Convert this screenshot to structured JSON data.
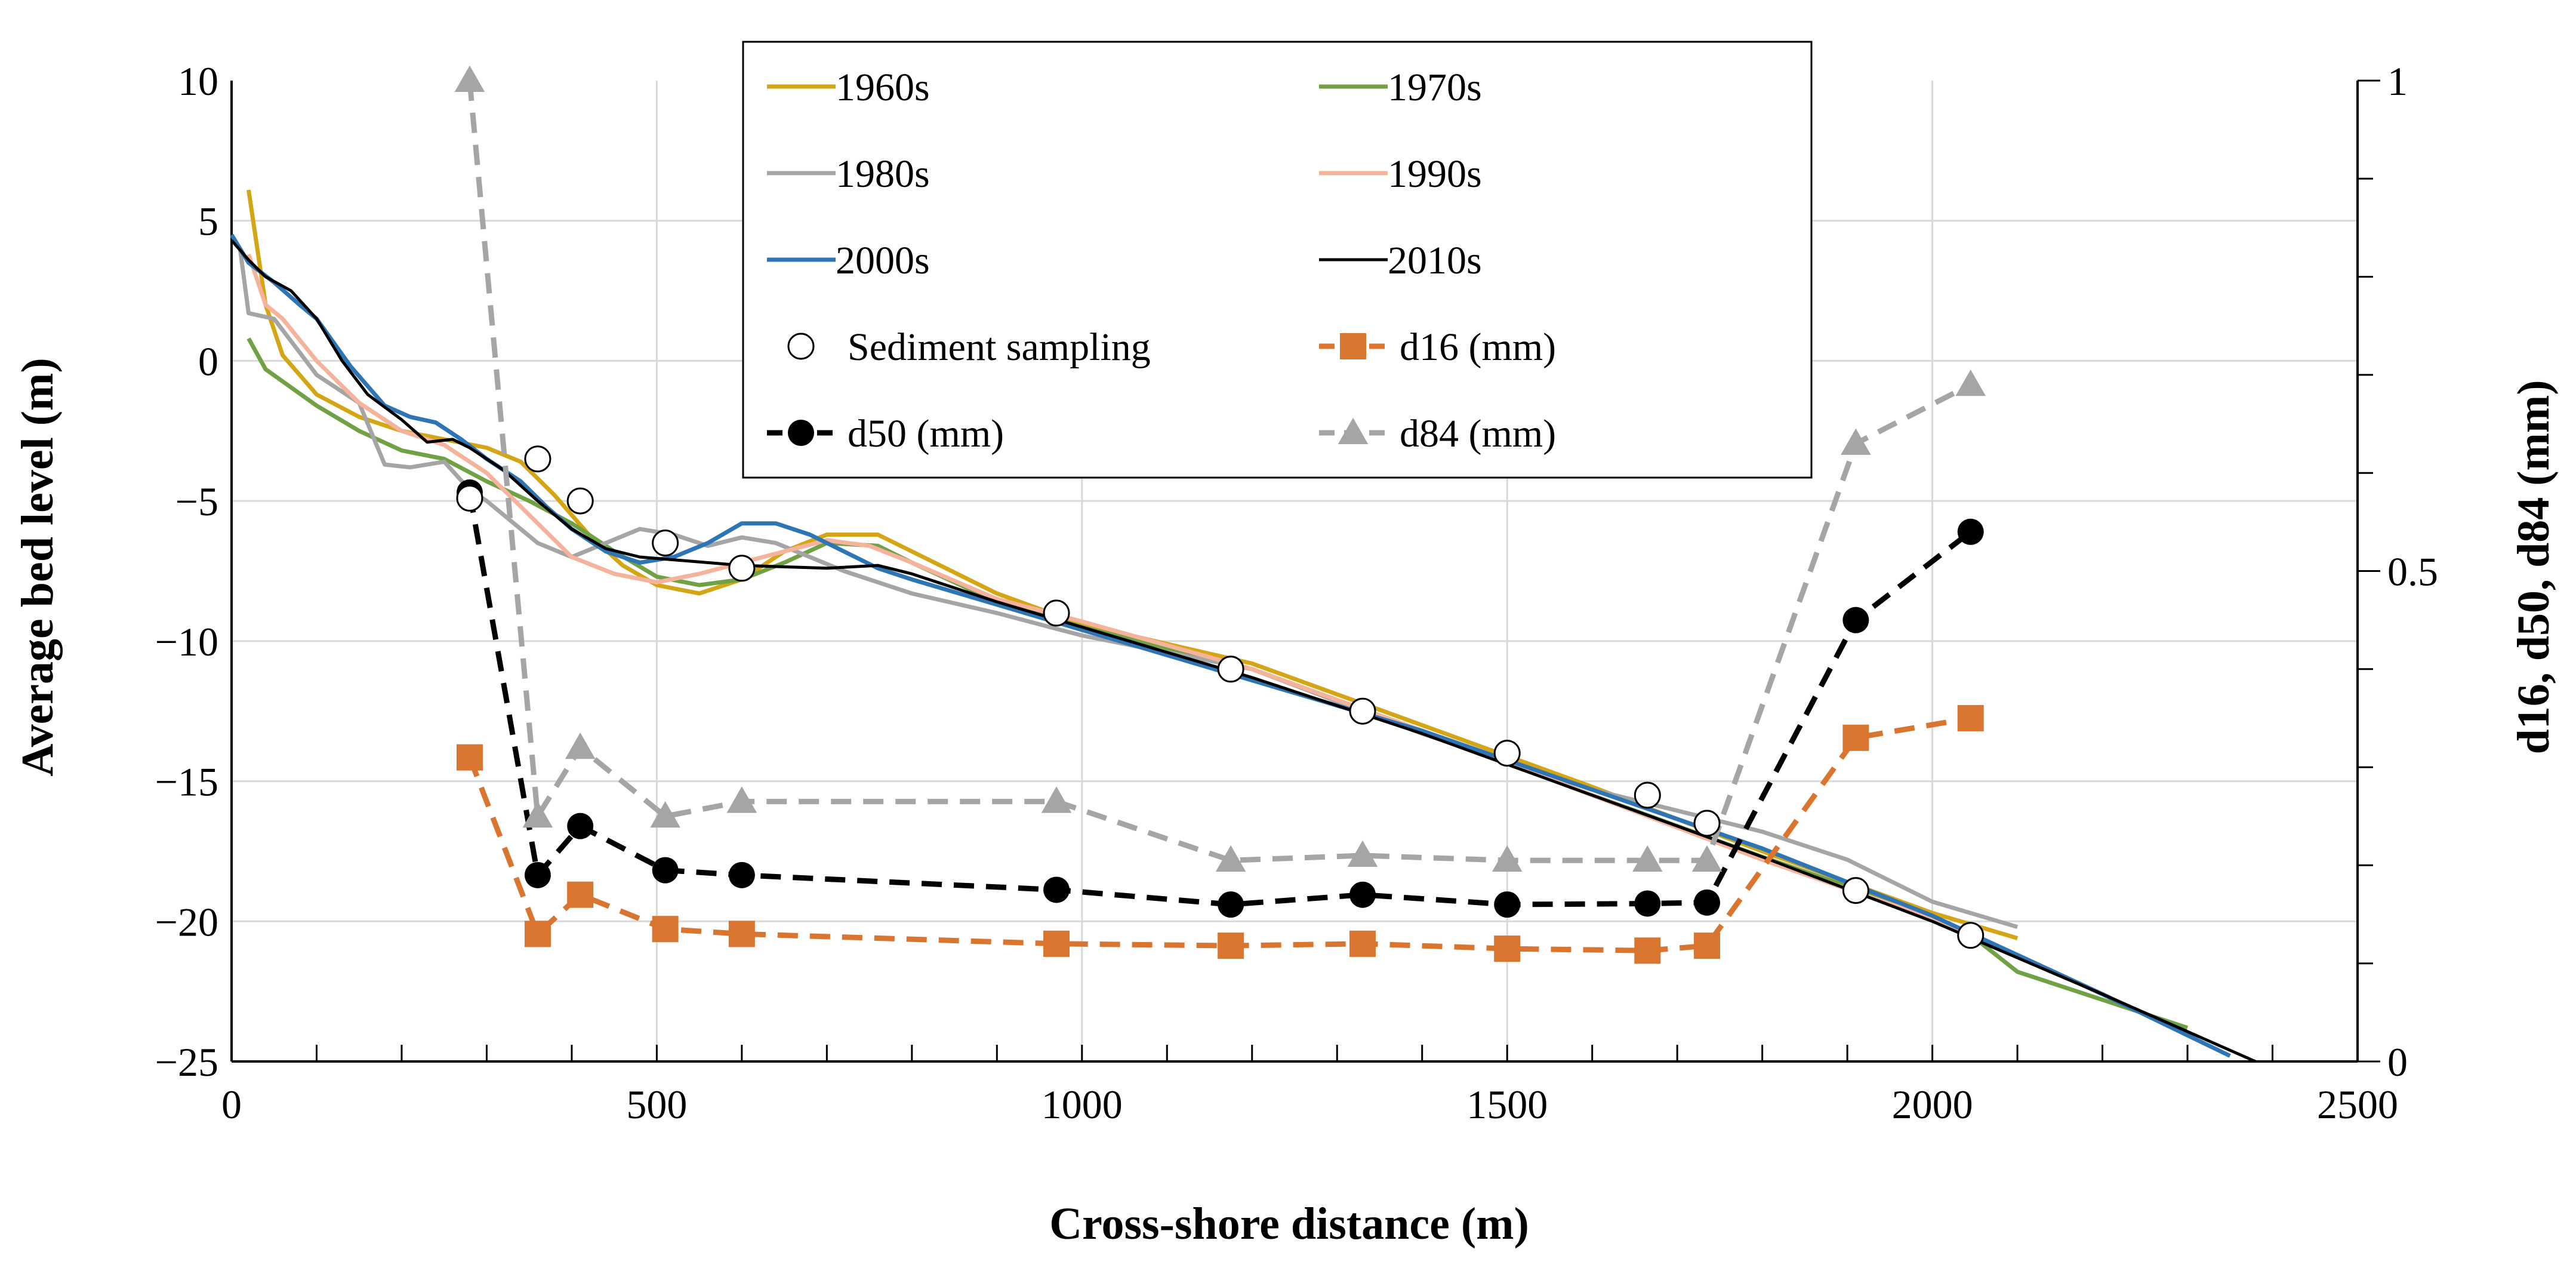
{
  "chart_data": {
    "type": "line",
    "xlabel": "Cross-shore distance (m)",
    "ylabel": "Average bed level (m)",
    "y2label": "d16, d50, d84 (mm)",
    "xlim": [
      0,
      2500
    ],
    "ylim": [
      -25,
      10
    ],
    "y2lim": [
      0,
      1
    ],
    "grid": true,
    "legend_position": "top-center",
    "x_ticks": [
      0,
      500,
      1000,
      1500,
      2000,
      2500
    ],
    "y_ticks": [
      10,
      5,
      0,
      -5,
      -10,
      -15,
      -20,
      -25
    ],
    "y2_ticks": [
      0,
      0.5,
      1
    ],
    "x_tick_labels": [
      "0",
      "500",
      "1000",
      "1500",
      "2000",
      "2500"
    ],
    "y_tick_labels": [
      "10",
      "5",
      "0",
      "−5",
      "−10",
      "−15",
      "−20",
      "−25"
    ],
    "y2_tick_labels": [
      "0",
      "0.5",
      "1"
    ],
    "profiles": [
      {
        "name": "1960s",
        "color": "#D4A514",
        "x": [
          20,
          40,
          60,
          100,
          150,
          200,
          250,
          300,
          340,
          380,
          420,
          460,
          500,
          550,
          600,
          650,
          700,
          760,
          800,
          900,
          1000,
          1200,
          1400,
          1600,
          1800,
          2000,
          2100
        ],
        "y": [
          6.1,
          2.0,
          0.2,
          -1.2,
          -2.0,
          -2.5,
          -2.8,
          -3.1,
          -3.6,
          -4.8,
          -6.2,
          -7.3,
          -8.0,
          -8.3,
          -7.8,
          -6.8,
          -6.2,
          -6.2,
          -6.8,
          -8.3,
          -9.4,
          -10.8,
          -13.0,
          -15.2,
          -17.5,
          -19.7,
          -20.6
        ]
      },
      {
        "name": "1970s",
        "color": "#70A145",
        "x": [
          20,
          40,
          100,
          150,
          200,
          250,
          300,
          350,
          400,
          450,
          500,
          550,
          600,
          650,
          700,
          760,
          800,
          900,
          1000,
          1200,
          1400,
          1600,
          1800,
          2000,
          2050,
          2100,
          2200,
          2300
        ],
        "y": [
          0.8,
          -0.3,
          -1.6,
          -2.5,
          -3.2,
          -3.5,
          -4.3,
          -5.0,
          -5.8,
          -6.8,
          -7.7,
          -8.0,
          -7.8,
          -7.2,
          -6.5,
          -6.6,
          -7.2,
          -8.6,
          -9.5,
          -11.0,
          -13.2,
          -15.5,
          -17.7,
          -19.8,
          -20.6,
          -21.8,
          -22.8,
          -23.8
        ]
      },
      {
        "name": "1980s",
        "color": "#A5A5A5",
        "x": [
          10,
          20,
          50,
          80,
          100,
          150,
          180,
          210,
          250,
          280,
          300,
          360,
          400,
          440,
          480,
          520,
          560,
          600,
          640,
          680,
          720,
          800,
          900,
          1000,
          1200,
          1400,
          1600,
          1800,
          1900,
          2000,
          2100
        ],
        "y": [
          4.0,
          1.7,
          1.5,
          0.3,
          -0.5,
          -1.5,
          -3.7,
          -3.8,
          -3.6,
          -4.6,
          -5.0,
          -6.5,
          -7.0,
          -6.5,
          -6.0,
          -6.2,
          -6.6,
          -6.3,
          -6.5,
          -7.0,
          -7.5,
          -8.3,
          -9.0,
          -9.8,
          -11.0,
          -13.3,
          -15.3,
          -16.8,
          -17.8,
          -19.3,
          -20.2
        ]
      },
      {
        "name": "1990s",
        "color": "#F4B39A",
        "x": [
          20,
          40,
          60,
          100,
          150,
          200,
          250,
          300,
          350,
          400,
          450,
          500,
          550,
          600,
          650,
          700,
          750,
          800,
          900,
          1000,
          1200,
          1400,
          1600,
          1800,
          2000,
          2100,
          2200,
          2300
        ],
        "y": [
          3.8,
          2.0,
          1.5,
          0.0,
          -1.5,
          -2.5,
          -3.0,
          -4.0,
          -5.5,
          -7.0,
          -7.6,
          -7.9,
          -7.6,
          -7.2,
          -6.8,
          -6.4,
          -6.6,
          -7.2,
          -8.5,
          -9.3,
          -11.0,
          -13.2,
          -15.5,
          -17.8,
          -19.9,
          -21.2,
          -22.6,
          -24.0
        ]
      },
      {
        "name": "2000s",
        "color": "#2E75B6",
        "x": [
          0,
          20,
          50,
          80,
          100,
          140,
          180,
          210,
          240,
          270,
          300,
          340,
          370,
          400,
          440,
          480,
          520,
          560,
          600,
          640,
          680,
          720,
          760,
          800,
          900,
          1000,
          1200,
          1400,
          1600,
          1800,
          2000,
          2200,
          2350
        ],
        "y": [
          4.5,
          3.5,
          2.8,
          2.0,
          1.5,
          -0.2,
          -1.6,
          -2.0,
          -2.2,
          -2.8,
          -3.5,
          -4.3,
          -5.2,
          -6.0,
          -6.8,
          -7.2,
          -7.0,
          -6.5,
          -5.8,
          -5.8,
          -6.2,
          -6.8,
          -7.4,
          -7.8,
          -8.7,
          -9.6,
          -11.4,
          -13.2,
          -15.3,
          -17.4,
          -19.8,
          -22.6,
          -24.8
        ]
      },
      {
        "name": "2010s",
        "color": "#000000",
        "x": [
          0,
          20,
          40,
          70,
          100,
          130,
          160,
          200,
          230,
          260,
          280,
          320,
          360,
          400,
          440,
          480,
          520,
          600,
          700,
          760,
          800,
          900,
          1000,
          1200,
          1400,
          1600,
          1800,
          2000,
          2200,
          2380
        ],
        "y": [
          4.3,
          3.6,
          3.0,
          2.5,
          1.5,
          0.0,
          -1.2,
          -2.1,
          -2.9,
          -2.8,
          -3.1,
          -3.9,
          -5.0,
          -6.0,
          -6.7,
          -7.0,
          -7.1,
          -7.3,
          -7.4,
          -7.3,
          -7.6,
          -8.6,
          -9.5,
          -11.3,
          -13.3,
          -15.5,
          -17.7,
          -20.0,
          -22.6,
          -25.0
        ]
      }
    ],
    "sampling": {
      "name": "Sediment sampling",
      "x": [
        280,
        360,
        410,
        510,
        600,
        970,
        1175,
        1330,
        1500,
        1665,
        1735,
        1910,
        2045
      ],
      "y": [
        -4.9,
        -3.5,
        -5.0,
        -6.5,
        -7.4,
        -9.0,
        -11.0,
        -12.5,
        -14.0,
        -15.5,
        -16.5,
        -18.9,
        -20.5
      ]
    },
    "grain_series": [
      {
        "name": "d16 (mm)",
        "color": "#D9752F",
        "marker": "square",
        "x": [
          280,
          360,
          410,
          510,
          600,
          970,
          1175,
          1330,
          1500,
          1665,
          1735,
          1910,
          2045
        ],
        "values": [
          0.31,
          0.13,
          0.17,
          0.135,
          0.13,
          0.12,
          0.118,
          0.12,
          0.115,
          0.113,
          0.118,
          0.33,
          0.35
        ]
      },
      {
        "name": "d50 (mm)",
        "color": "#000000",
        "marker": "circle",
        "x": [
          280,
          360,
          410,
          510,
          600,
          970,
          1175,
          1330,
          1500,
          1665,
          1735,
          1910,
          2045
        ],
        "values": [
          0.58,
          0.19,
          0.24,
          0.195,
          0.19,
          0.175,
          0.16,
          0.17,
          0.16,
          0.161,
          0.162,
          0.45,
          0.54
        ]
      },
      {
        "name": "d84 (mm)",
        "color": "#A5A5A5",
        "marker": "triangle",
        "x": [
          280,
          360,
          410,
          510,
          600,
          970,
          1175,
          1330,
          1500,
          1665,
          1735,
          1910,
          2045
        ],
        "values": [
          1.0,
          0.25,
          0.32,
          0.25,
          0.265,
          0.265,
          0.205,
          0.21,
          0.205,
          0.205,
          0.205,
          0.63,
          0.69
        ]
      }
    ],
    "legend": {
      "entries": [
        "1960s",
        "1970s",
        "1980s",
        "1990s",
        "2000s",
        "2010s",
        "Sediment sampling",
        "d16 (mm)",
        "d50 (mm)",
        "d84 (mm)"
      ]
    }
  }
}
